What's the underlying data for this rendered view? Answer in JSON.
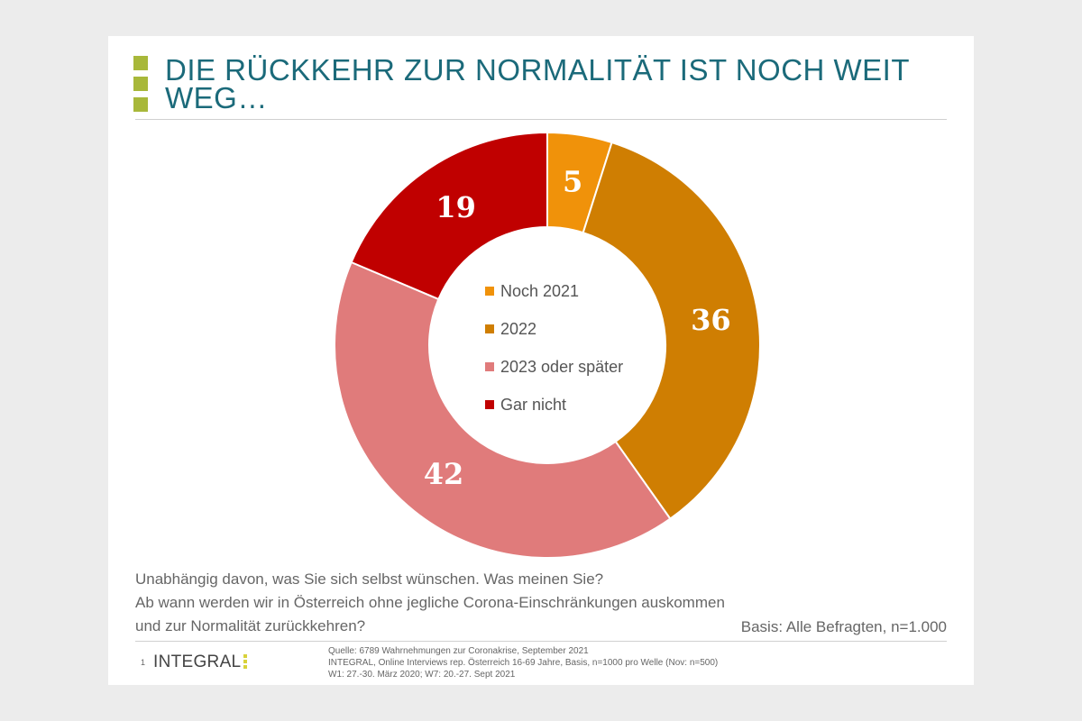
{
  "slide": {
    "title": "DIE RÜCKKEHR ZUR NORMALITÄT IST NOCH WEIT WEG…",
    "question_lines": [
      "Unabhängig davon, was Sie sich selbst wünschen. Was meinen Sie?",
      "Ab wann werden wir in Österreich ohne jegliche Corona-Einschränkungen  auskommen",
      "und zur Normalität zurückkehren?"
    ],
    "basis": "Basis: Alle Befragten,  n=1.000",
    "page_number": "1",
    "logo": "INTEGRAL",
    "source_lines": [
      "Quelle: 6789 Wahrnehmungen zur Coronakrise, September 2021",
      "INTEGRAL, Online Interviews rep. Österreich 16-69 Jahre, Basis, n=1000 pro Welle (Nov: n=500)",
      "W1: 27.-30. März 2020; W7: 20.-27. Sept 2021"
    ]
  },
  "colors": {
    "title": "#1b6a7a",
    "bullet": "#a8b83a"
  },
  "chart_data": {
    "type": "pie",
    "variant": "donut",
    "title": "",
    "categories": [
      "Noch 2021",
      "2022",
      "2023 oder später",
      "Gar nicht"
    ],
    "values": [
      5,
      36,
      42,
      19
    ],
    "colors": [
      "#f0920a",
      "#cf7e02",
      "#e07b7b",
      "#c00000"
    ],
    "data_labels": [
      "5",
      "36",
      "42",
      "19"
    ],
    "legend_position": "center"
  }
}
